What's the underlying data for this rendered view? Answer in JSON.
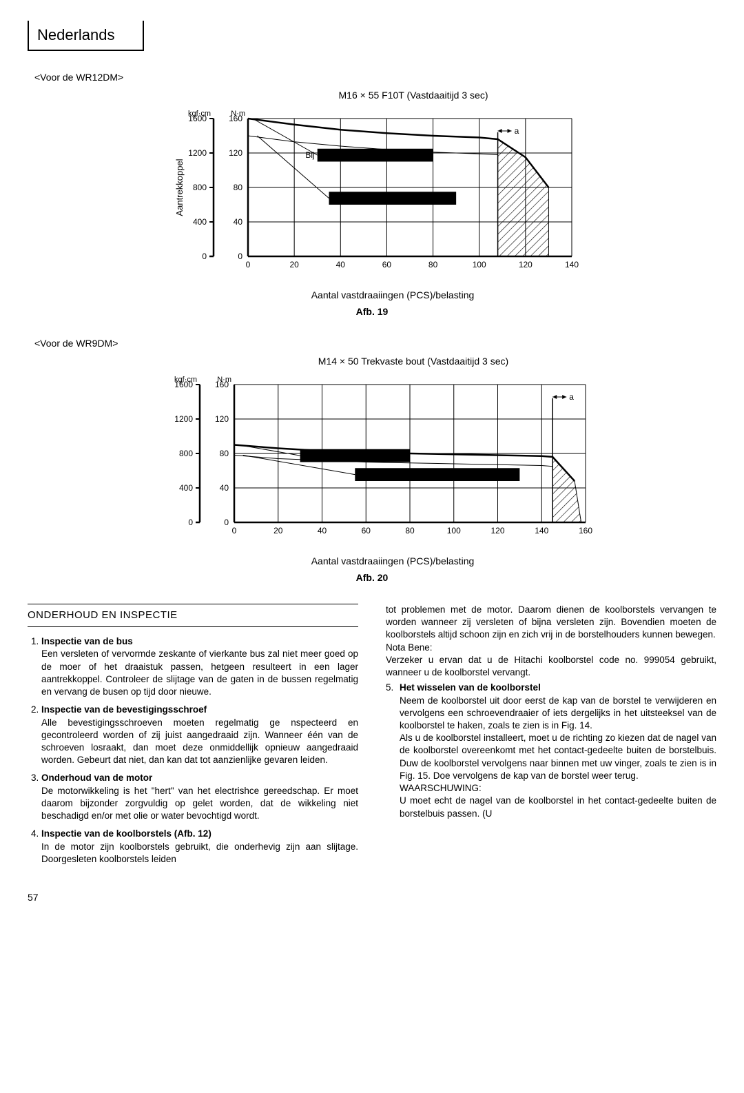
{
  "lang_label": "Nederlands",
  "subheader1": "<Voor de WR12DM>",
  "subheader2": "<Voor de WR9DM>",
  "chart1": {
    "title": "M16 × 55 F10T (Vastdaaitijd 3 sec)",
    "y_unit_left": "kgf·cm",
    "y_unit_right": "N·m",
    "y_ticks_left": [
      "1600",
      "1200",
      "800",
      "400",
      "0"
    ],
    "y_ticks_right": [
      "160",
      "120",
      "80",
      "40",
      "0"
    ],
    "x_ticks": [
      "0",
      "20",
      "40",
      "60",
      "80",
      "100",
      "120",
      "140"
    ],
    "x_label": "Aantal vastdraaiingen (PCS)/belasting",
    "y_label": "Aantrekkoppel",
    "caption": "Afb. 19",
    "a_label": "a",
    "bij_label": "Bij",
    "main_curve": [
      [
        0,
        160
      ],
      [
        20,
        153
      ],
      [
        40,
        147
      ],
      [
        60,
        143
      ],
      [
        80,
        140
      ],
      [
        100,
        138
      ],
      [
        108,
        136
      ],
      [
        120,
        115
      ],
      [
        130,
        80
      ]
    ],
    "limit_curve": [
      [
        0,
        140
      ],
      [
        20,
        133
      ],
      [
        40,
        128
      ],
      [
        60,
        124
      ],
      [
        80,
        121
      ],
      [
        100,
        119
      ],
      [
        108,
        118
      ]
    ],
    "hatch_x": [
      108,
      130
    ],
    "black_boxes": [
      [
        30,
        110,
        50,
        15
      ],
      [
        35,
        60,
        55,
        15
      ]
    ]
  },
  "chart2": {
    "title": "M14 × 50 Trekvaste bout (Vastdaaitijd 3 sec)",
    "y_unit_left": "kgf·cm",
    "y_unit_right": "N·m",
    "y_ticks_left": [
      "1600",
      "1200",
      "800",
      "400",
      "0"
    ],
    "y_ticks_right": [
      "160",
      "120",
      "80",
      "40",
      "0"
    ],
    "x_ticks": [
      "0",
      "20",
      "40",
      "60",
      "80",
      "100",
      "120",
      "140",
      "160"
    ],
    "x_label": "Aantal vastdraaiingen (PCS)/belasting",
    "caption": "Afb. 20",
    "a_label": "a",
    "main_curve": [
      [
        0,
        90
      ],
      [
        20,
        86
      ],
      [
        40,
        83
      ],
      [
        60,
        81
      ],
      [
        80,
        80
      ],
      [
        100,
        79
      ],
      [
        120,
        78
      ],
      [
        140,
        77
      ],
      [
        145,
        76
      ],
      [
        155,
        48
      ]
    ],
    "limit_curve": [
      [
        0,
        78
      ],
      [
        20,
        74
      ],
      [
        40,
        72
      ],
      [
        60,
        70
      ],
      [
        80,
        69
      ],
      [
        100,
        68
      ],
      [
        120,
        67
      ],
      [
        140,
        66
      ],
      [
        145,
        65
      ]
    ],
    "hatch_x": [
      145,
      158
    ],
    "black_boxes": [
      [
        30,
        70,
        50,
        15
      ],
      [
        55,
        48,
        75,
        15
      ]
    ]
  },
  "section_title": "ONDERHOUD EN INSPECTIE",
  "items": [
    {
      "title": "Inspectie van de bus",
      "body": "Een versleten of vervormde zeskante of vierkante bus zal niet meer goed op de moer of het draaistuk passen, hetgeen resulteert in een lager aantrekkoppel. Controleer de slijtage van de gaten in de bussen regelmatig en vervang de busen op tijd door nieuwe."
    },
    {
      "title": "Inspectie van de bevestigingsschroef",
      "body": "Alle bevestigingsschroeven moeten regelmatig ge nspecteerd en gecontroleerd worden of zij juist aangedraaid zijn. Wanneer één van de schroeven losraakt, dan moet deze onmiddellijk opnieuw aangedraaid worden. Gebeurt dat niet, dan kan dat tot aanzienlijke gevaren leiden."
    },
    {
      "title": "Onderhoud van de motor",
      "body": "De motorwikkeling is het \"hert\" van het electrishce gereedschap. Er moet daarom bijzonder zorgvuldig op gelet worden, dat de wikkeling niet beschadigd en/or met olie or water bevochtigd wordt."
    },
    {
      "title": "Inspectie van de koolborstels (Afb. 12)",
      "body": "In de motor zijn koolborstels gebruikt, die onderhevig zijn aan slijtage. Doorgesleten koolborstels leiden"
    }
  ],
  "right_intro": "tot problemen met de motor. Daarom dienen de koolborstels vervangen te worden wanneer zij versleten of bijna versleten zijn. Bovendien moeten de koolborstels altijd schoon zijn en zich vrij in de borstelhouders kunnen bewegen.",
  "nota_bene_label": "Nota Bene:",
  "nota_bene_body": "Verzeker u ervan dat u de Hitachi koolborstel code no. 999054 gebruikt, wanneer u de koolborstel vervangt.",
  "item5_title": "Het wisselen van de koolborstel",
  "item5_body1": "Neem de koolborstel uit door eerst de kap van de borstel te verwijderen en vervolgens een schroevendraaier of iets dergelijks in het uitsteeksel van de koolborstel te haken, zoals te zien is in Fig. 14.",
  "item5_body2": "Als u de koolborstel installeert, moet u de richting zo kiezen dat de nagel van de koolborstel overeenkomt met het contact-gedeelte buiten de borstelbuis. Duw de koolborstel vervolgens naar binnen met uw vinger, zoals te zien is in Fig. 15. Doe vervolgens de kap van de borstel weer terug.",
  "warning_label": "WAARSCHUWING:",
  "warning_body": "U moet echt de nagel van de koolborstel in het contact-gedeelte buiten de borstelbuis passen. (U",
  "page_num": "57"
}
